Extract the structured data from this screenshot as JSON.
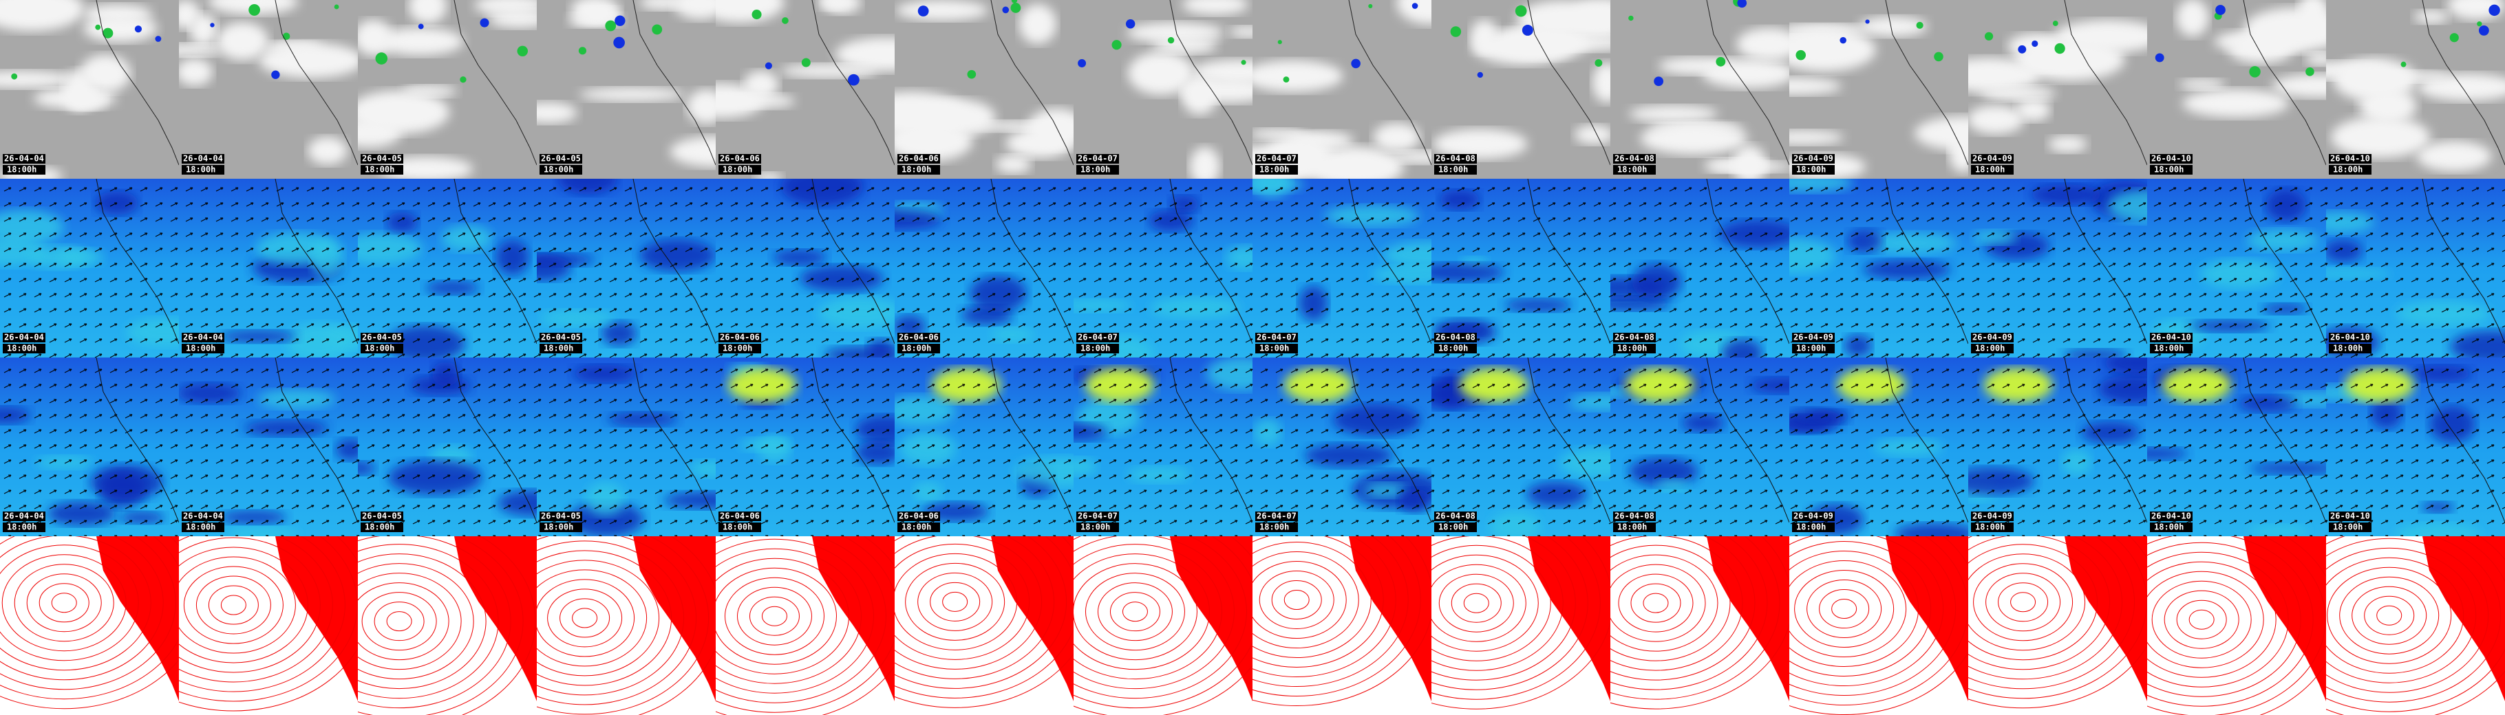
{
  "columns": [
    {
      "date": "26-04-04",
      "time": "18:00h"
    },
    {
      "date": "26-04-04",
      "time": "18:00h"
    },
    {
      "date": "26-04-05",
      "time": "18:00h"
    },
    {
      "date": "26-04-05",
      "time": "18:00h"
    },
    {
      "date": "26-04-06",
      "time": "18:00h"
    },
    {
      "date": "26-04-06",
      "time": "18:00h"
    },
    {
      "date": "26-04-07",
      "time": "18:00h"
    },
    {
      "date": "26-04-07",
      "time": "18:00h"
    },
    {
      "date": "26-04-08",
      "time": "18:00h"
    },
    {
      "date": "26-04-08",
      "time": "18:00h"
    },
    {
      "date": "26-04-09",
      "time": "18:00h"
    },
    {
      "date": "26-04-09",
      "time": "18:00h"
    },
    {
      "date": "26-04-10",
      "time": "18:00h"
    },
    {
      "date": "26-04-10",
      "time": "18:00h"
    }
  ]
}
